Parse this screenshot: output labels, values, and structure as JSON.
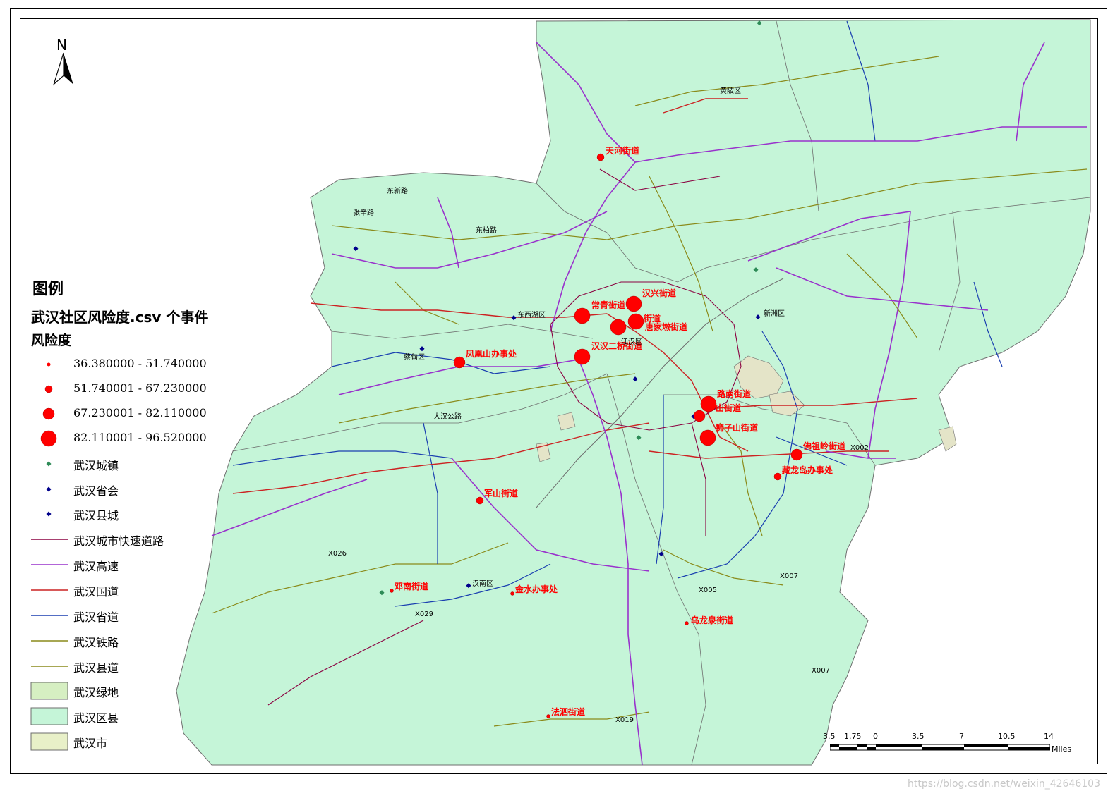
{
  "legend": {
    "title": "图例",
    "layer_title": "武汉社区风险度.csv 个事件",
    "field_title": "风险度",
    "classes": [
      {
        "label": "36.380000 - 51.740000",
        "size": "small"
      },
      {
        "label": "51.740001 - 67.230000",
        "size": "medium-small"
      },
      {
        "label": "67.230001 - 82.110000",
        "size": "medium"
      },
      {
        "label": "82.110001 - 96.520000",
        "size": "large"
      }
    ],
    "point_layers": [
      {
        "label": "武汉城镇",
        "icon": "diamond-icon",
        "color": "#2e8b57"
      },
      {
        "label": "武汉省会",
        "icon": "diamond-icon",
        "color": "#00008b"
      },
      {
        "label": "武汉县城",
        "icon": "diamond-icon",
        "color": "#00008b"
      }
    ],
    "line_layers": [
      {
        "label": "武汉城市快速道路",
        "color": "#8b0040"
      },
      {
        "label": "武汉高速",
        "color": "#9932cc"
      },
      {
        "label": "武汉国道",
        "color": "#cc2222"
      },
      {
        "label": "武汉省道",
        "color": "#1a3fb0"
      },
      {
        "label": "武汉铁路",
        "color": "#8a8a1a"
      },
      {
        "label": "武汉县道",
        "color": "#8a8a1a"
      }
    ],
    "polygon_layers": [
      {
        "label": "武汉绿地",
        "color": "#d6efc2"
      },
      {
        "label": "武汉区县",
        "color": "#c5f5d8"
      },
      {
        "label": "武汉市",
        "color": "#e8f0c8"
      }
    ]
  },
  "north_arrow": {
    "letter": "N"
  },
  "colors": {
    "district_fill": "#c5f5d8",
    "lake_fill": "#e4e4c8",
    "risk_point": "#ff0000",
    "border": "#6e6e6e"
  },
  "places": [
    {
      "name": "天河街道",
      "class": 1
    },
    {
      "name": "汉兴街道",
      "class": 4
    },
    {
      "name": "常青街道",
      "class": 4
    },
    {
      "name": "街道",
      "class": 4
    },
    {
      "name": "唐家墩街道",
      "class": 4
    },
    {
      "name": "汉兴",
      "class": 4
    },
    {
      "name": "汉汉二桥街道",
      "class": 4
    },
    {
      "name": "凤凰山办事处",
      "class": 2
    },
    {
      "name": "路南街道",
      "class": 4
    },
    {
      "name": "山街道",
      "class": 3
    },
    {
      "name": "狮子山街道",
      "class": 4
    },
    {
      "name": "佛祖岭街道",
      "class": 3
    },
    {
      "name": "藏龙岛办事处",
      "class": 2
    },
    {
      "name": "军山街道",
      "class": 2
    },
    {
      "name": "邓南街道",
      "class": 1
    },
    {
      "name": "金水办事处",
      "class": 1
    },
    {
      "name": "乌龙泉街道",
      "class": 1
    },
    {
      "name": "法泗街道",
      "class": 1
    }
  ],
  "road_labels": [
    "X026",
    "X005",
    "X007",
    "X029",
    "X007",
    "X002",
    "X019",
    "东西湖区",
    "汉南区",
    "江汉区",
    "蔡甸区",
    "大汉公路",
    "东柏路",
    "张辛路",
    "东新路",
    "黄陂区",
    "新洲区"
  ],
  "scale_bar": {
    "ticks": [
      "3.5",
      "1.75",
      "0",
      "3.5",
      "7",
      "10.5",
      "14"
    ],
    "unit": "Miles"
  },
  "watermark": "https://blog.csdn.net/weixin_42646103"
}
